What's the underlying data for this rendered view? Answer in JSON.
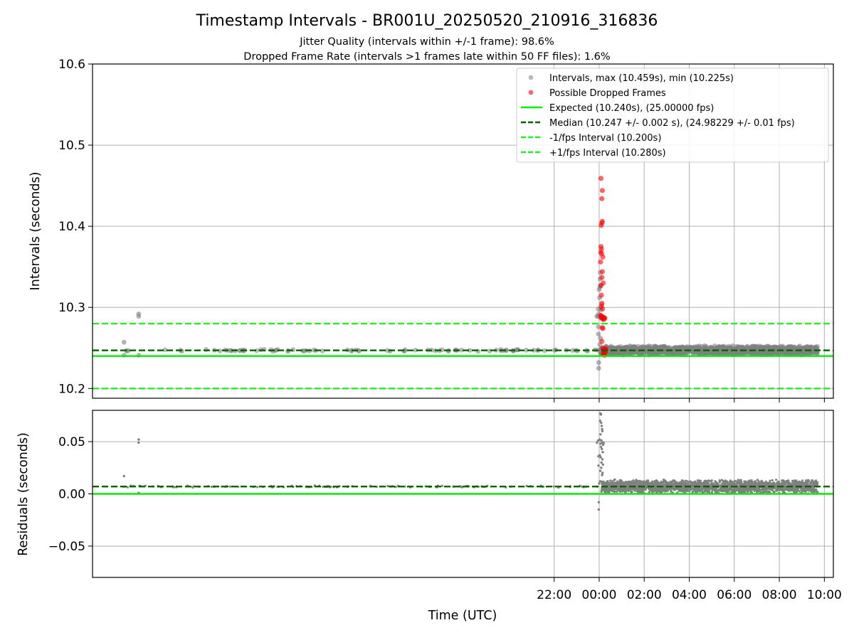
{
  "title": "Timestamp Intervals - BR001U_20250520_210916_316836",
  "subtitle_1": "Jitter Quality (intervals within +/-1 frame): 98.6%",
  "subtitle_2": "Dropped Frame Rate (intervals >1 frames late within 50 FF files): 1.6%",
  "colors": {
    "intervals": "#808080",
    "dropped": "#ff0000",
    "expected": "#00ee00",
    "median": "#006400",
    "fps_band": "#22ee22",
    "grid": "#b0b0b0"
  },
  "chart_data": [
    {
      "type": "scatter",
      "xlabel": "",
      "ylabel": "Intervals (seconds)",
      "x_unit": "hours since 00:00 UTC (negative = previous day)",
      "xlim": [
        -22.5,
        10.4
      ],
      "ylim": [
        10.188,
        10.6
      ],
      "y_ticks": [
        "10.2",
        "10.3",
        "10.4",
        "10.5",
        "10.6"
      ],
      "grid": true,
      "legend_position": "top-right",
      "legend": [
        "Intervals, max (10.459s), min (10.225s)",
        "Possible Dropped Frames",
        "Expected (10.240s), (25.00000 fps)",
        "Median (10.247 +/- 0.002 s), (24.98229 +/- 0.01 fps)",
        "-1/fps Interval (10.200s)",
        "+1/fps Interval (10.280s)"
      ],
      "reference_lines": [
        {
          "name": "Expected",
          "y": 10.24,
          "style": "solid"
        },
        {
          "name": "Median",
          "y": 10.247,
          "style": "dashed"
        },
        {
          "name": "-1/fps Interval",
          "y": 10.2,
          "style": "dashed"
        },
        {
          "name": "+1/fps Interval",
          "y": 10.28,
          "style": "dashed"
        }
      ],
      "series": [
        {
          "name": "Intervals",
          "marker": "circle",
          "baseline": {
            "x_range": [
              -21.1,
              9.7
            ],
            "y_center": 10.247,
            "y_spread": 0.006
          },
          "points": [
            [
              -21.1,
              10.257
            ],
            [
              -21.1,
              10.241
            ],
            [
              -20.45,
              10.292
            ],
            [
              -20.45,
              10.289
            ],
            [
              -20.45,
              10.241
            ],
            [
              -0.05,
              10.289
            ],
            [
              -0.1,
              10.289
            ],
            [
              -0.02,
              10.292
            ],
            [
              -0.04,
              10.298
            ],
            [
              -0.03,
              10.276
            ],
            [
              -0.03,
              10.267
            ],
            [
              -0.02,
              10.232
            ],
            [
              -0.02,
              10.225
            ],
            [
              0.0,
              10.322
            ],
            [
              0.02,
              10.312
            ],
            [
              0.03,
              10.325
            ],
            [
              0.04,
              10.335
            ],
            [
              0.05,
              10.343
            ],
            [
              0.06,
              10.327
            ],
            [
              0.07,
              10.297
            ],
            [
              0.05,
              10.287
            ],
            [
              0.08,
              10.29
            ],
            [
              0.03,
              10.254
            ],
            [
              0.06,
              10.262
            ],
            [
              0.12,
              10.303
            ]
          ]
        },
        {
          "name": "Possible Dropped Frames",
          "marker": "circle",
          "points": [
            [
              0.08,
              10.459
            ],
            [
              0.14,
              10.444
            ],
            [
              0.12,
              10.434
            ],
            [
              0.14,
              10.406
            ],
            [
              0.12,
              10.404
            ],
            [
              0.09,
              10.401
            ],
            [
              0.08,
              10.375
            ],
            [
              0.1,
              10.372
            ],
            [
              0.07,
              10.368
            ],
            [
              0.11,
              10.366
            ],
            [
              0.06,
              10.356
            ],
            [
              0.16,
              10.362
            ],
            [
              0.14,
              10.344
            ],
            [
              0.12,
              10.337
            ],
            [
              0.18,
              10.33
            ],
            [
              0.08,
              10.327
            ],
            [
              0.1,
              10.315
            ],
            [
              0.12,
              10.305
            ],
            [
              0.09,
              10.301
            ],
            [
              0.15,
              10.298
            ],
            [
              0.07,
              10.29
            ],
            [
              0.09,
              10.288
            ],
            [
              0.11,
              10.289
            ],
            [
              0.13,
              10.287
            ],
            [
              0.15,
              10.286
            ],
            [
              0.17,
              10.288
            ],
            [
              0.19,
              10.285
            ],
            [
              0.21,
              10.287
            ],
            [
              0.23,
              10.286
            ],
            [
              0.25,
              10.287
            ],
            [
              0.14,
              10.275
            ],
            [
              0.16,
              10.274
            ],
            [
              0.12,
              10.258
            ],
            [
              0.17,
              10.25
            ],
            [
              0.19,
              10.248
            ],
            [
              0.21,
              10.246
            ],
            [
              0.23,
              10.247
            ],
            [
              0.25,
              10.245
            ],
            [
              0.27,
              10.248
            ],
            [
              0.18,
              10.243
            ],
            [
              0.2,
              10.244
            ],
            [
              0.22,
              10.242
            ],
            [
              0.24,
              10.241
            ],
            [
              0.26,
              10.243
            ],
            [
              0.28,
              10.246
            ],
            [
              0.3,
              10.249
            ]
          ]
        }
      ]
    },
    {
      "type": "scatter",
      "xlabel": "Time (UTC)",
      "ylabel": "Residuals (seconds)",
      "xlim": [
        -22.5,
        10.4
      ],
      "ylim": [
        -0.08,
        0.08
      ],
      "x_ticks": [
        "22:00",
        "00:00",
        "02:00",
        "04:00",
        "06:00",
        "08:00",
        "10:00"
      ],
      "y_ticks": [
        "−0.05",
        "0.00",
        "0.05"
      ],
      "grid": true,
      "reference_lines": [
        {
          "name": "Expected",
          "y": 0.0,
          "style": "solid"
        },
        {
          "name": "Median",
          "y": 0.007,
          "style": "dashed"
        }
      ],
      "series": [
        {
          "name": "Residuals",
          "marker": "dot",
          "baseline": {
            "x_range": [
              -21.1,
              9.7
            ],
            "y_center": 0.007,
            "y_spread": 0.007
          },
          "points": [
            [
              -21.1,
              0.017
            ],
            [
              -20.45,
              0.052
            ],
            [
              -20.45,
              0.049
            ],
            [
              -20.45,
              0.001
            ],
            [
              0.05,
              0.077
            ],
            [
              0.08,
              0.076
            ],
            [
              0.04,
              0.07
            ],
            [
              0.09,
              0.068
            ],
            [
              0.11,
              0.065
            ],
            [
              0.13,
              0.062
            ],
            [
              0.14,
              0.06
            ],
            [
              0.06,
              0.057
            ],
            [
              -0.05,
              0.051
            ],
            [
              -0.1,
              0.049
            ],
            [
              0.02,
              0.052
            ],
            [
              0.06,
              0.048
            ],
            [
              0.1,
              0.051
            ],
            [
              0.14,
              0.049
            ],
            [
              0.18,
              0.047
            ],
            [
              0.2,
              0.049
            ],
            [
              0.08,
              0.045
            ],
            [
              0.12,
              0.043
            ],
            [
              0.16,
              0.04
            ],
            [
              0.03,
              0.037
            ],
            [
              0.07,
              0.035
            ],
            [
              0.1,
              0.03
            ],
            [
              0.14,
              0.033
            ],
            [
              0.09,
              0.025
            ],
            [
              0.13,
              0.018
            ],
            [
              0.05,
              0.022
            ],
            [
              0.0,
              0.01
            ],
            [
              0.04,
              0.012
            ],
            [
              0.17,
              0.028
            ],
            [
              -0.02,
              -0.008
            ],
            [
              -0.02,
              -0.015
            ],
            [
              -0.03,
              0.036
            ],
            [
              -0.03,
              0.027
            ],
            [
              0.15,
              0.02
            ]
          ]
        }
      ]
    }
  ]
}
